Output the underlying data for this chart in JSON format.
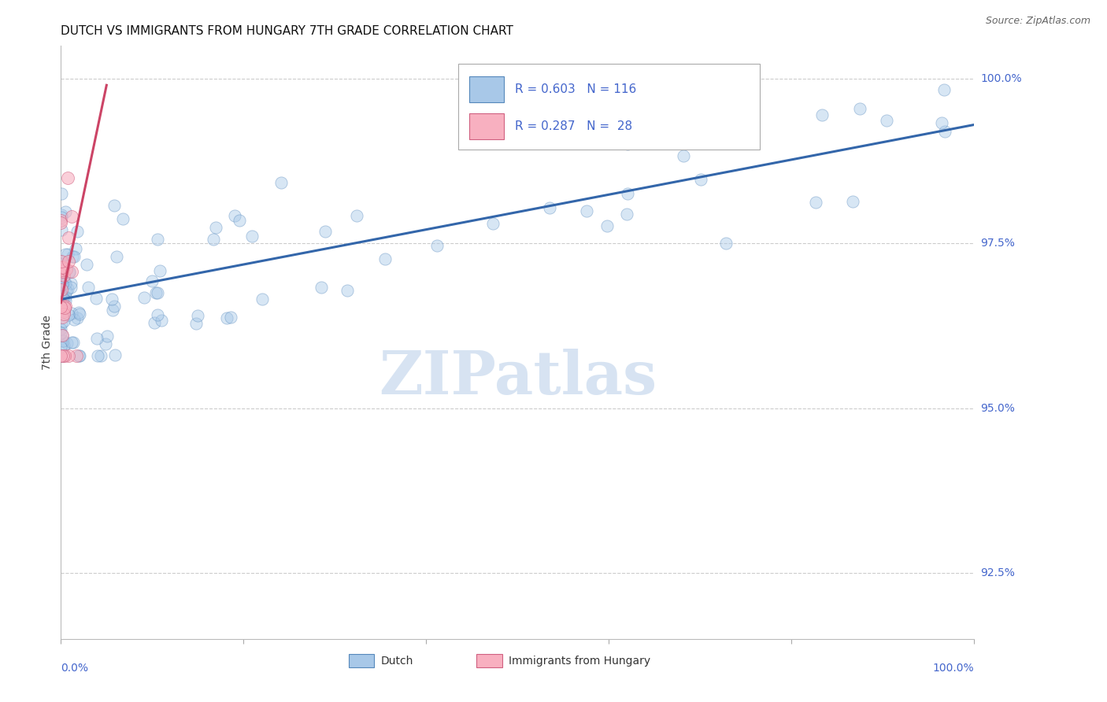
{
  "title": "DUTCH VS IMMIGRANTS FROM HUNGARY 7TH GRADE CORRELATION CHART",
  "source_text": "Source: ZipAtlas.com",
  "ylabel": "7th Grade",
  "xlim": [
    0.0,
    1.0
  ],
  "ylim": [
    0.915,
    1.005
  ],
  "ytick_labels": [
    "92.5%",
    "95.0%",
    "97.5%",
    "100.0%"
  ],
  "ytick_values": [
    0.925,
    0.95,
    0.975,
    1.0
  ],
  "dutch_color": "#a8c8e8",
  "dutch_edge_color": "#5588bb",
  "hungary_color": "#f8b0c0",
  "hungary_edge_color": "#d06080",
  "trendline_dutch_color": "#3366aa",
  "trendline_hungary_color": "#cc4466",
  "background_color": "#ffffff",
  "grid_color": "#cccccc",
  "title_fontsize": 11,
  "source_fontsize": 9,
  "ytick_color": "#4466cc",
  "xtick_color": "#4466cc",
  "legend_R_N_color": "#4466cc",
  "watermark_color": "#d0dff0",
  "dutch_trend_x0": 0.0,
  "dutch_trend_y0": 0.9665,
  "dutch_trend_x1": 1.0,
  "dutch_trend_y1": 0.993,
  "hungary_trend_x0": 0.0,
  "hungary_trend_y0": 0.966,
  "hungary_trend_x1": 0.05,
  "hungary_trend_y1": 0.999,
  "scatter_size": 120,
  "scatter_alpha": 0.45
}
